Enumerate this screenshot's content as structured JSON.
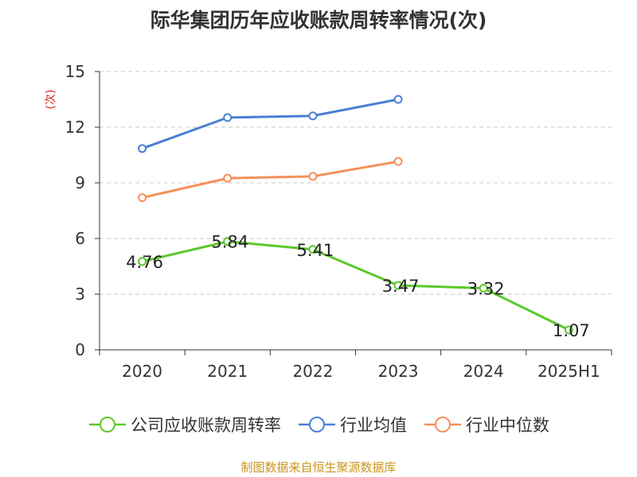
{
  "chart_data": {
    "type": "line",
    "title": "际华集团历年应收账款周转率情况(次)",
    "ylabel": "(次)",
    "xlabel": "",
    "categories": [
      "2020",
      "2021",
      "2022",
      "2023",
      "2024",
      "2025H1"
    ],
    "ylim": [
      0,
      15
    ],
    "yticks": [
      0,
      3,
      6,
      9,
      12,
      15
    ],
    "grid": true,
    "legend_position": "bottom",
    "series": [
      {
        "name": "公司应收账款周转率",
        "color": "#5cc82a",
        "values": [
          4.76,
          5.84,
          5.41,
          3.47,
          3.32,
          1.07
        ],
        "labels": [
          "4.76",
          "5.84",
          "5.41",
          "3.47",
          "3.32",
          "1.07"
        ],
        "show_labels": true
      },
      {
        "name": "行业均值",
        "color": "#4a7fd6",
        "values": [
          10.85,
          12.52,
          12.61,
          13.5,
          null,
          null
        ],
        "show_labels": false
      },
      {
        "name": "行业中位数",
        "color": "#f59058",
        "values": [
          8.2,
          9.25,
          9.35,
          10.15,
          null,
          null
        ],
        "show_labels": false
      }
    ]
  },
  "source": "制图数据来自恒生聚源数据库"
}
